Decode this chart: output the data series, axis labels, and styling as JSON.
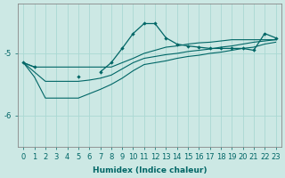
{
  "xlabel": "Humidex (Indice chaleur)",
  "bg_color": "#cce8e4",
  "line_color": "#006666",
  "grid_color": "#aad8d3",
  "xlim": [
    -0.5,
    23.5
  ],
  "ylim": [
    -6.5,
    -4.2
  ],
  "yticks": [
    -6,
    -5
  ],
  "xticks": [
    0,
    1,
    2,
    3,
    4,
    5,
    6,
    7,
    8,
    9,
    10,
    11,
    12,
    13,
    14,
    15,
    16,
    17,
    18,
    19,
    20,
    21,
    22,
    23
  ],
  "spike_y": [
    -5.15,
    -5.22,
    null,
    null,
    null,
    -5.38,
    null,
    -5.3,
    -5.15,
    -4.92,
    -4.68,
    -4.52,
    -4.52,
    -4.75,
    -4.85,
    -4.88,
    -4.9,
    -4.92,
    -4.92,
    -4.92,
    -4.92,
    -4.95,
    -4.68,
    -4.75
  ],
  "lin1_y": [
    -5.15,
    -5.22,
    -5.22,
    -5.22,
    -5.22,
    -5.22,
    -5.22,
    -5.22,
    -5.22,
    -5.15,
    -5.08,
    -5.0,
    -4.95,
    -4.9,
    -4.88,
    -4.85,
    -4.83,
    -4.82,
    -4.8,
    -4.78,
    -4.78,
    -4.78,
    -4.78,
    -4.78
  ],
  "lin2_y": [
    -5.15,
    -5.3,
    -5.45,
    -5.45,
    -5.45,
    -5.45,
    -5.43,
    -5.4,
    -5.35,
    -5.25,
    -5.15,
    -5.08,
    -5.05,
    -5.02,
    -5.0,
    -4.97,
    -4.95,
    -4.93,
    -4.9,
    -4.88,
    -4.85,
    -4.82,
    -4.8,
    -4.78
  ],
  "lin3_y": [
    -5.15,
    -5.38,
    -5.72,
    -5.72,
    -5.72,
    -5.72,
    -5.65,
    -5.58,
    -5.5,
    -5.4,
    -5.28,
    -5.18,
    -5.15,
    -5.12,
    -5.08,
    -5.05,
    -5.03,
    -5.0,
    -4.98,
    -4.95,
    -4.92,
    -4.9,
    -4.85,
    -4.82
  ]
}
